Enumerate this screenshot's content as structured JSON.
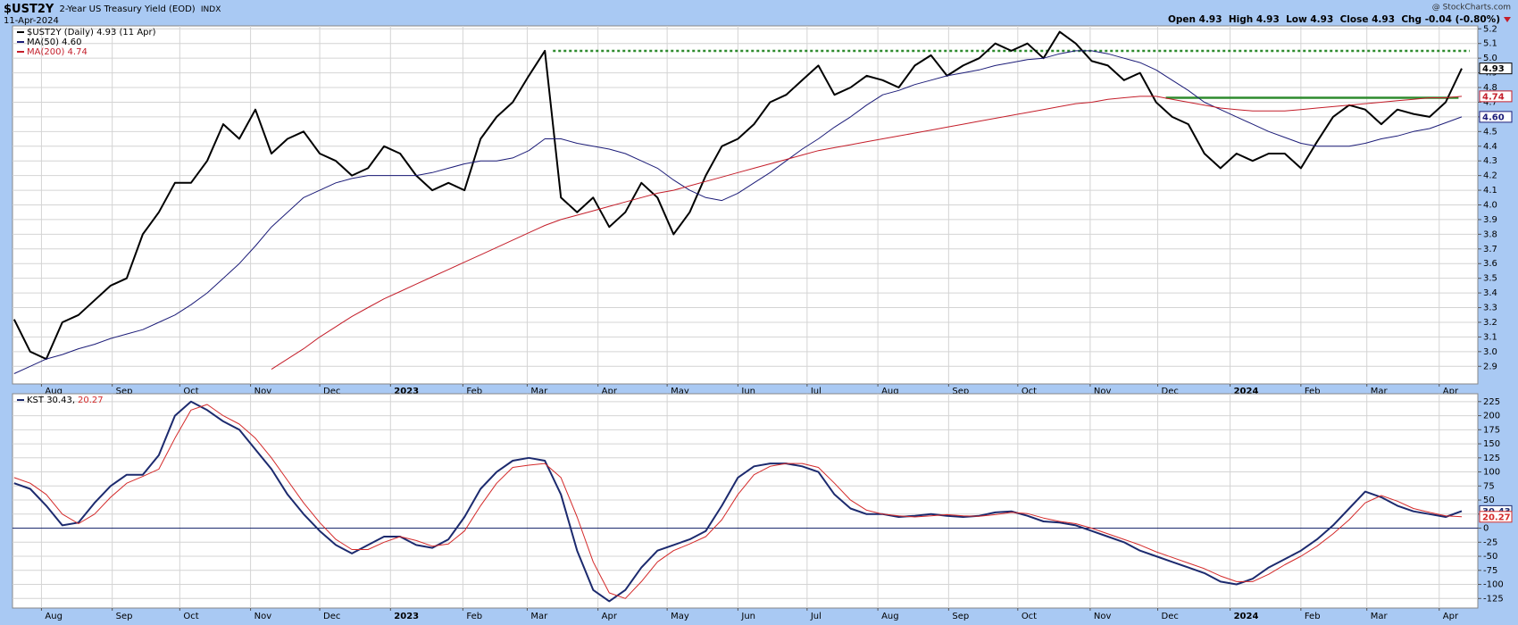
{
  "header": {
    "symbol": "$UST2Y",
    "description": "2-Year US Treasury Yield (EOD)",
    "exchange": "INDX",
    "date": "11-Apr-2024",
    "source": "@ StockCharts.com",
    "quote": "Open 4.93  High 4.93  Low 4.93  Close 4.93  Chg -0.04 (-0.80%)"
  },
  "chart_data": [
    {
      "type": "line",
      "xlim": [
        -0.1,
        91
      ],
      "xticks": [
        {
          "value": 1.7,
          "label": "Aug"
        },
        {
          "value": 6.1,
          "label": "Sep"
        },
        {
          "value": 10.3,
          "label": "Oct"
        },
        {
          "value": 14.7,
          "label": "Nov"
        },
        {
          "value": 19,
          "label": "Dec"
        },
        {
          "value": 23.4,
          "label": "2023"
        },
        {
          "value": 27.9,
          "label": "Feb"
        },
        {
          "value": 31.9,
          "label": "Mar"
        },
        {
          "value": 36.3,
          "label": "Apr"
        },
        {
          "value": 40.6,
          "label": "May"
        },
        {
          "value": 45,
          "label": "Jun"
        },
        {
          "value": 49.3,
          "label": "Jul"
        },
        {
          "value": 53.7,
          "label": "Aug"
        },
        {
          "value": 58.1,
          "label": "Sep"
        },
        {
          "value": 62.4,
          "label": "Oct"
        },
        {
          "value": 66.9,
          "label": "Nov"
        },
        {
          "value": 71.1,
          "label": "Dec"
        },
        {
          "value": 75.6,
          "label": "2024"
        },
        {
          "value": 80,
          "label": "Feb"
        },
        {
          "value": 84.1,
          "label": "Mar"
        },
        {
          "value": 88.6,
          "label": "Apr"
        }
      ],
      "ylim": [
        2.78,
        5.22
      ],
      "yticks": [
        2.9,
        {
          "value": 3,
          "label": "3.0"
        },
        3.1,
        3.2,
        3.3,
        3.4,
        3.5,
        3.6,
        3.7,
        3.8,
        3.9,
        {
          "value": 4,
          "label": "4.0"
        },
        4.1,
        4.2,
        4.3,
        4.4,
        4.5,
        4.6,
        4.7,
        4.8,
        4.9,
        {
          "value": 5,
          "label": "5.0"
        },
        5.1,
        5.2
      ],
      "grid": true,
      "series": [
        {
          "name": "$UST2Y (Daily) 4.93 (11 Apr)",
          "color": "#000000",
          "width": 2,
          "end_label": "4.93",
          "values": [
            3.22,
            3.0,
            2.95,
            3.2,
            3.25,
            3.35,
            3.45,
            3.5,
            3.8,
            3.95,
            4.15,
            4.15,
            4.3,
            4.55,
            4.45,
            4.65,
            4.35,
            4.45,
            4.5,
            4.35,
            4.3,
            4.2,
            4.25,
            4.4,
            4.35,
            4.2,
            4.1,
            4.15,
            4.1,
            4.45,
            4.6,
            4.7,
            4.88,
            5.05,
            4.05,
            3.95,
            4.05,
            3.85,
            3.95,
            4.15,
            4.05,
            3.8,
            3.95,
            4.2,
            4.4,
            4.45,
            4.55,
            4.7,
            4.75,
            4.85,
            4.95,
            4.75,
            4.8,
            4.88,
            4.85,
            4.8,
            4.95,
            5.02,
            4.88,
            4.95,
            5.0,
            5.1,
            5.05,
            5.1,
            5.0,
            5.18,
            5.1,
            4.98,
            4.95,
            4.85,
            4.9,
            4.7,
            4.6,
            4.55,
            4.35,
            4.25,
            4.35,
            4.3,
            4.35,
            4.35,
            4.25,
            4.43,
            4.6,
            4.68,
            4.65,
            4.55,
            4.65,
            4.62,
            4.6,
            4.7,
            4.93
          ]
        },
        {
          "name": "MA(50) 4.60",
          "color": "#1c1c78",
          "width": 1,
          "end_label": "4.60",
          "values": [
            2.85,
            2.9,
            2.95,
            2.98,
            3.02,
            3.05,
            3.09,
            3.12,
            3.15,
            3.2,
            3.25,
            3.32,
            3.4,
            3.5,
            3.6,
            3.72,
            3.85,
            3.95,
            4.05,
            4.1,
            4.15,
            4.18,
            4.2,
            4.2,
            4.2,
            4.2,
            4.22,
            4.25,
            4.28,
            4.3,
            4.3,
            4.32,
            4.37,
            4.45,
            4.45,
            4.42,
            4.4,
            4.38,
            4.35,
            4.3,
            4.25,
            4.17,
            4.1,
            4.05,
            4.03,
            4.08,
            4.15,
            4.22,
            4.3,
            4.38,
            4.45,
            4.53,
            4.6,
            4.68,
            4.75,
            4.78,
            4.82,
            4.85,
            4.88,
            4.9,
            4.92,
            4.95,
            4.97,
            4.99,
            5.0,
            5.03,
            5.05,
            5.05,
            5.03,
            5.0,
            4.97,
            4.92,
            4.85,
            4.78,
            4.7,
            4.65,
            4.6,
            4.55,
            4.5,
            4.46,
            4.42,
            4.4,
            4.4,
            4.4,
            4.42,
            4.45,
            4.47,
            4.5,
            4.52,
            4.56,
            4.6
          ]
        },
        {
          "name": "MA(200) 4.74",
          "color": "#c41e2a",
          "width": 1,
          "end_label": "4.74",
          "values": [
            null,
            null,
            null,
            null,
            null,
            null,
            null,
            null,
            null,
            null,
            null,
            null,
            null,
            null,
            null,
            null,
            2.88,
            2.95,
            3.02,
            3.1,
            3.17,
            3.24,
            3.3,
            3.36,
            3.41,
            3.46,
            3.51,
            3.56,
            3.61,
            3.66,
            3.71,
            3.76,
            3.81,
            3.86,
            3.9,
            3.93,
            3.96,
            3.99,
            4.02,
            4.05,
            4.08,
            4.1,
            4.13,
            4.16,
            4.19,
            4.22,
            4.25,
            4.28,
            4.31,
            4.34,
            4.37,
            4.39,
            4.41,
            4.43,
            4.45,
            4.47,
            4.49,
            4.51,
            4.53,
            4.55,
            4.57,
            4.59,
            4.61,
            4.63,
            4.65,
            4.67,
            4.69,
            4.7,
            4.72,
            4.73,
            4.74,
            4.74,
            4.72,
            4.7,
            4.68,
            4.66,
            4.65,
            4.64,
            4.64,
            4.64,
            4.65,
            4.66,
            4.67,
            4.68,
            4.69,
            4.7,
            4.71,
            4.72,
            4.73,
            4.73,
            4.74
          ]
        }
      ],
      "hlines": [
        {
          "value": 5.05,
          "from": 33.5,
          "to": 90.5,
          "color": "#2e8b2e",
          "style": "dotted"
        },
        {
          "value": 4.73,
          "from": 71.6,
          "to": 89.8,
          "color": "#2e8b2e",
          "style": "solid"
        }
      ]
    },
    {
      "type": "line",
      "xlim": [
        -0.1,
        91
      ],
      "xticks": [
        {
          "value": 1.7,
          "label": "Aug"
        },
        {
          "value": 6.1,
          "label": "Sep"
        },
        {
          "value": 10.3,
          "label": "Oct"
        },
        {
          "value": 14.7,
          "label": "Nov"
        },
        {
          "value": 19,
          "label": "Dec"
        },
        {
          "value": 23.4,
          "label": "2023"
        },
        {
          "value": 27.9,
          "label": "Feb"
        },
        {
          "value": 31.9,
          "label": "Mar"
        },
        {
          "value": 36.3,
          "label": "Apr"
        },
        {
          "value": 40.6,
          "label": "May"
        },
        {
          "value": 45,
          "label": "Jun"
        },
        {
          "value": 49.3,
          "label": "Jul"
        },
        {
          "value": 53.7,
          "label": "Aug"
        },
        {
          "value": 58.1,
          "label": "Sep"
        },
        {
          "value": 62.4,
          "label": "Oct"
        },
        {
          "value": 66.9,
          "label": "Nov"
        },
        {
          "value": 71.1,
          "label": "Dec"
        },
        {
          "value": 75.6,
          "label": "2024"
        },
        {
          "value": 80,
          "label": "Feb"
        },
        {
          "value": 84.1,
          "label": "Mar"
        },
        {
          "value": 88.6,
          "label": "Apr"
        }
      ],
      "ylim": [
        -142,
        239
      ],
      "yticks": [
        225,
        200,
        175,
        150,
        125,
        100,
        75,
        50,
        25,
        0,
        -25,
        -50,
        -75,
        -100,
        -125
      ],
      "grid": true,
      "baseline": 0,
      "series": [
        {
          "name": "KST 30.43,",
          "color": "#1c2a6e",
          "width": 2,
          "end_label": "30.43",
          "values": [
            80,
            70,
            40,
            5,
            10,
            45,
            75,
            95,
            95,
            130,
            200,
            225,
            210,
            190,
            175,
            140,
            105,
            60,
            25,
            -5,
            -30,
            -45,
            -30,
            -15,
            -15,
            -30,
            -35,
            -20,
            20,
            70,
            100,
            120,
            125,
            120,
            60,
            -40,
            -110,
            -130,
            -110,
            -70,
            -40,
            -30,
            -20,
            -5,
            40,
            90,
            110,
            115,
            115,
            110,
            100,
            60,
            35,
            25,
            25,
            20,
            22,
            25,
            22,
            20,
            22,
            28,
            30,
            22,
            12,
            10,
            5,
            -5,
            -15,
            -25,
            -40,
            -50,
            -60,
            -70,
            -80,
            -95,
            -100,
            -90,
            -70,
            -55,
            -40,
            -20,
            5,
            35,
            65,
            55,
            40,
            30,
            25,
            20,
            30.43
          ]
        },
        {
          "name": "20.27",
          "color": "#d42a2a",
          "width": 1,
          "end_label": "20.27",
          "values": [
            90,
            80,
            60,
            25,
            8,
            25,
            55,
            80,
            92,
            105,
            160,
            210,
            220,
            200,
            185,
            160,
            125,
            85,
            45,
            10,
            -20,
            -38,
            -38,
            -25,
            -15,
            -22,
            -32,
            -28,
            -5,
            40,
            80,
            108,
            112,
            115,
            90,
            20,
            -60,
            -115,
            -125,
            -95,
            -60,
            -40,
            -28,
            -15,
            15,
            60,
            95,
            110,
            115,
            115,
            108,
            80,
            50,
            32,
            25,
            22,
            20,
            22,
            24,
            22,
            21,
            24,
            28,
            26,
            18,
            12,
            8,
            0,
            -10,
            -20,
            -30,
            -42,
            -52,
            -62,
            -72,
            -85,
            -95,
            -95,
            -82,
            -65,
            -50,
            -32,
            -10,
            15,
            45,
            58,
            48,
            35,
            28,
            22,
            20.27
          ]
        }
      ]
    }
  ]
}
